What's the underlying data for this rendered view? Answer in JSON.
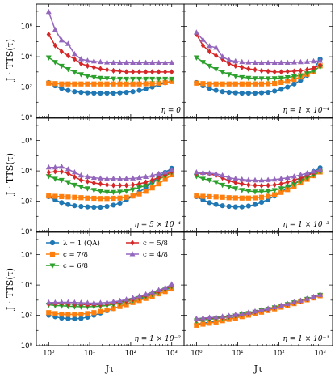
{
  "figure": {
    "ylabel": "J · TTS(τ)",
    "xlabel": "Jτ",
    "x_ticks": [
      "10⁰",
      "10¹",
      "10²",
      "10³"
    ],
    "y_ticks": [
      "10⁰",
      "10²",
      "10⁴",
      "10⁶"
    ]
  },
  "legend": [
    {
      "label": "λ = 1 (QA)",
      "color": "#1f77b4",
      "marker": "circle"
    },
    {
      "label": "c = 7/8",
      "color": "#ff7f0e",
      "marker": "square"
    },
    {
      "label": "c = 6/8",
      "color": "#2ca02c",
      "marker": "triangle-down"
    },
    {
      "label": "c = 5/8",
      "color": "#d62728",
      "marker": "diamond"
    },
    {
      "label": "c = 4/8",
      "color": "#9467bd",
      "marker": "triangle-up"
    }
  ],
  "chart_data": [
    {
      "type": "line",
      "annotation": "η = 0",
      "xscale": "log",
      "yscale": "log",
      "xlim": [
        0.5,
        2000
      ],
      "ylim": [
        1,
        30000000
      ],
      "x": [
        1,
        1.44,
        2.07,
        2.98,
        4.28,
        6.16,
        8.86,
        12.7,
        18.3,
        26.4,
        37.9,
        54.6,
        78.5,
        113,
        162,
        234,
        336,
        483,
        695,
        1000
      ],
      "series": [
        {
          "name": "λ = 1 (QA)",
          "values": [
            200,
            120,
            80,
            60,
            50,
            45,
            42,
            40,
            40,
            40,
            40,
            42,
            45,
            50,
            60,
            75,
            100,
            140,
            190,
            260
          ]
        },
        {
          "name": "c = 7/8",
          "values": [
            180,
            170,
            160,
            160,
            160,
            160,
            160,
            160,
            160,
            160,
            160,
            160,
            160,
            160,
            160,
            165,
            170,
            180,
            200,
            230
          ]
        },
        {
          "name": "c = 6/8",
          "values": [
            9000,
            4500,
            2500,
            1500,
            1000,
            700,
            550,
            450,
            400,
            380,
            360,
            350,
            350,
            350,
            350,
            350,
            350,
            350,
            350,
            350
          ]
        },
        {
          "name": "c = 5/8",
          "values": [
            300000,
            55000,
            22000,
            12000,
            7000,
            3500,
            2500,
            2000,
            1600,
            1400,
            1200,
            1100,
            1000,
            1000,
            1000,
            1000,
            1000,
            1000,
            1000,
            1000
          ]
        },
        {
          "name": "c = 4/8",
          "values": [
            9000000,
            600000,
            120000,
            70000,
            15000,
            7000,
            5500,
            5000,
            4500,
            4200,
            4000,
            4000,
            4000,
            4000,
            4000,
            4000,
            4000,
            4000,
            4000,
            4000
          ]
        }
      ]
    },
    {
      "type": "line",
      "annotation": "η = 1 × 10⁻⁴",
      "xscale": "log",
      "yscale": "log",
      "xlim": [
        0.5,
        2000
      ],
      "ylim": [
        1,
        30000000
      ],
      "x": [
        1,
        1.44,
        2.07,
        2.98,
        4.28,
        6.16,
        8.86,
        12.7,
        18.3,
        26.4,
        37.9,
        54.6,
        78.5,
        113,
        162,
        234,
        336,
        483,
        695,
        1000
      ],
      "series": [
        {
          "name": "λ = 1 (QA)",
          "values": [
            200,
            120,
            80,
            60,
            50,
            45,
            42,
            40,
            40,
            40,
            42,
            45,
            55,
            70,
            100,
            160,
            280,
            600,
            1500,
            7000
          ]
        },
        {
          "name": "c = 7/8",
          "values": [
            180,
            170,
            160,
            160,
            160,
            160,
            160,
            160,
            160,
            160,
            160,
            165,
            175,
            200,
            240,
            320,
            460,
            700,
            1100,
            2500
          ]
        },
        {
          "name": "c = 6/8",
          "values": [
            9000,
            4500,
            2500,
            1500,
            1000,
            700,
            550,
            450,
            400,
            380,
            370,
            370,
            380,
            400,
            440,
            500,
            600,
            800,
            1200,
            2200
          ]
        },
        {
          "name": "c = 5/8",
          "values": [
            300000,
            55000,
            22000,
            12000,
            7000,
            3500,
            2500,
            2000,
            1600,
            1400,
            1200,
            1100,
            1000,
            1000,
            1050,
            1100,
            1200,
            1400,
            1800,
            2800
          ]
        },
        {
          "name": "c = 4/8",
          "values": [
            400000,
            130000,
            50000,
            40000,
            10000,
            6000,
            5000,
            4500,
            4200,
            4000,
            4000,
            4000,
            4000,
            4000,
            4000,
            4200,
            4400,
            4600,
            5000,
            5500
          ]
        }
      ]
    },
    {
      "type": "line",
      "annotation": "η = 5 × 10⁻⁴",
      "xscale": "log",
      "yscale": "log",
      "xlim": [
        0.5,
        2000
      ],
      "ylim": [
        1,
        30000000
      ],
      "x": [
        1,
        1.44,
        2.07,
        2.98,
        4.28,
        6.16,
        8.86,
        12.7,
        18.3,
        26.4,
        37.9,
        54.6,
        78.5,
        113,
        162,
        234,
        336,
        483,
        695,
        1000
      ],
      "series": [
        {
          "name": "λ = 1 (QA)",
          "values": [
            200,
            120,
            80,
            60,
            50,
            45,
            42,
            40,
            40,
            45,
            55,
            75,
            120,
            220,
            400,
            800,
            1800,
            4000,
            8000,
            15000
          ]
        },
        {
          "name": "c = 7/8",
          "values": [
            220,
            210,
            200,
            190,
            180,
            170,
            160,
            155,
            150,
            150,
            155,
            160,
            180,
            220,
            300,
            450,
            750,
            1400,
            2800,
            5500
          ]
        },
        {
          "name": "c = 6/8",
          "values": [
            4500,
            3000,
            2500,
            1800,
            1200,
            900,
            700,
            550,
            450,
            400,
            400,
            420,
            480,
            600,
            800,
            1100,
            1700,
            2800,
            4500,
            8000
          ]
        },
        {
          "name": "c = 5/8",
          "values": [
            8000,
            9000,
            9000,
            7000,
            4000,
            2500,
            2000,
            1600,
            1400,
            1200,
            1100,
            1100,
            1100,
            1200,
            1400,
            1800,
            2500,
            3700,
            5500,
            9000
          ]
        },
        {
          "name": "c = 4/8",
          "values": [
            17000,
            17000,
            19000,
            13000,
            8000,
            5000,
            4000,
            3500,
            3200,
            3000,
            3000,
            3000,
            3000,
            3200,
            3500,
            4000,
            5000,
            6500,
            8000,
            11000
          ]
        }
      ]
    },
    {
      "type": "line",
      "annotation": "η = 1 × 10⁻³",
      "xscale": "log",
      "yscale": "log",
      "xlim": [
        0.5,
        2000
      ],
      "ylim": [
        1,
        30000000
      ],
      "x": [
        1,
        1.44,
        2.07,
        2.98,
        4.28,
        6.16,
        8.86,
        12.7,
        18.3,
        26.4,
        37.9,
        54.6,
        78.5,
        113,
        162,
        234,
        336,
        483,
        695,
        1000
      ],
      "series": [
        {
          "name": "λ = 1 (QA)",
          "values": [
            200,
            120,
            80,
            60,
            50,
            45,
            42,
            42,
            48,
            60,
            85,
            130,
            220,
            400,
            750,
            1400,
            2600,
            5000,
            9000,
            16000
          ]
        },
        {
          "name": "c = 7/8",
          "values": [
            220,
            210,
            200,
            190,
            180,
            170,
            165,
            160,
            160,
            165,
            180,
            210,
            270,
            380,
            580,
            950,
            1600,
            2800,
            4800,
            8500
          ]
        },
        {
          "name": "c = 6/8",
          "values": [
            4500,
            3000,
            2500,
            1800,
            1200,
            900,
            700,
            550,
            470,
            430,
            430,
            460,
            540,
            700,
            950,
            1400,
            2200,
            3500,
            5500,
            9000
          ]
        },
        {
          "name": "c = 5/8",
          "values": [
            7000,
            7000,
            6500,
            5000,
            3500,
            2200,
            1700,
            1400,
            1200,
            1100,
            1050,
            1100,
            1200,
            1400,
            1800,
            2400,
            3400,
            5000,
            7500,
            11000
          ]
        },
        {
          "name": "c = 4/8",
          "values": [
            8000,
            7500,
            7000,
            6500,
            5000,
            3500,
            3000,
            2700,
            2500,
            2400,
            2400,
            2500,
            2700,
            3000,
            3500,
            4300,
            5500,
            7000,
            9000,
            12000
          ]
        }
      ]
    },
    {
      "type": "line",
      "annotation": "η = 1 × 10⁻²",
      "xscale": "log",
      "yscale": "log",
      "xlim": [
        0.5,
        2000
      ],
      "ylim": [
        1,
        30000000
      ],
      "x": [
        1,
        1.44,
        2.07,
        2.98,
        4.28,
        6.16,
        8.86,
        12.7,
        18.3,
        26.4,
        37.9,
        54.6,
        78.5,
        113,
        162,
        234,
        336,
        483,
        695,
        1000
      ],
      "series": [
        {
          "name": "λ = 1 (QA)",
          "values": [
            100,
            80,
            65,
            60,
            58,
            62,
            75,
            100,
            140,
            200,
            280,
            400,
            550,
            800,
            1100,
            1600,
            2300,
            3300,
            4700,
            7000
          ]
        },
        {
          "name": "c = 7/8",
          "values": [
            150,
            130,
            120,
            115,
            115,
            120,
            130,
            150,
            180,
            220,
            280,
            380,
            500,
            700,
            950,
            1300,
            1800,
            2600,
            3700,
            5500
          ]
        },
        {
          "name": "c = 6/8",
          "values": [
            500,
            450,
            430,
            400,
            380,
            370,
            370,
            380,
            400,
            450,
            520,
            620,
            780,
            1000,
            1350,
            1800,
            2500,
            3500,
            5000,
            8000
          ]
        },
        {
          "name": "c = 5/8",
          "values": [
            600,
            600,
            600,
            580,
            550,
            520,
            500,
            500,
            520,
            560,
            640,
            760,
            950,
            1200,
            1600,
            2100,
            2900,
            4000,
            5800,
            9000
          ]
        },
        {
          "name": "c = 4/8",
          "values": [
            700,
            700,
            720,
            720,
            700,
            680,
            650,
            640,
            660,
            700,
            780,
            900,
            1100,
            1400,
            1800,
            2400,
            3300,
            4600,
            6600,
            11000
          ]
        }
      ]
    },
    {
      "type": "line",
      "annotation": "η = 1 × 10⁻¹",
      "xscale": "log",
      "yscale": "log",
      "xlim": [
        0.5,
        2000
      ],
      "ylim": [
        1,
        30000000
      ],
      "x": [
        1,
        1.44,
        2.07,
        2.98,
        4.28,
        6.16,
        8.86,
        12.7,
        18.3,
        26.4,
        37.9,
        54.6,
        78.5,
        113,
        162,
        234,
        336,
        483,
        695,
        1000
      ],
      "series": [
        {
          "name": "λ = 1 (QA)",
          "values": [
            25,
            30,
            35,
            40,
            50,
            60,
            75,
            95,
            120,
            150,
            190,
            240,
            310,
            400,
            520,
            680,
            900,
            1200,
            1600,
            2200
          ]
        },
        {
          "name": "c = 7/8",
          "values": [
            22,
            26,
            30,
            36,
            44,
            54,
            66,
            82,
            102,
            128,
            160,
            205,
            265,
            345,
            450,
            590,
            780,
            1050,
            1400,
            1950
          ]
        },
        {
          "name": "c = 6/8",
          "values": [
            45,
            50,
            55,
            60,
            70,
            80,
            95,
            115,
            140,
            170,
            210,
            265,
            335,
            430,
            550,
            710,
            920,
            1200,
            1600,
            2200
          ]
        },
        {
          "name": "c = 5/8",
          "values": [
            55,
            60,
            65,
            70,
            78,
            88,
            102,
            120,
            145,
            175,
            215,
            270,
            340,
            435,
            555,
            715,
            925,
            1210,
            1600,
            2200
          ]
        },
        {
          "name": "c = 4/8",
          "values": [
            60,
            65,
            70,
            75,
            82,
            92,
            106,
            125,
            150,
            180,
            220,
            275,
            345,
            440,
            560,
            720,
            930,
            1220,
            1610,
            2200
          ]
        }
      ]
    }
  ]
}
